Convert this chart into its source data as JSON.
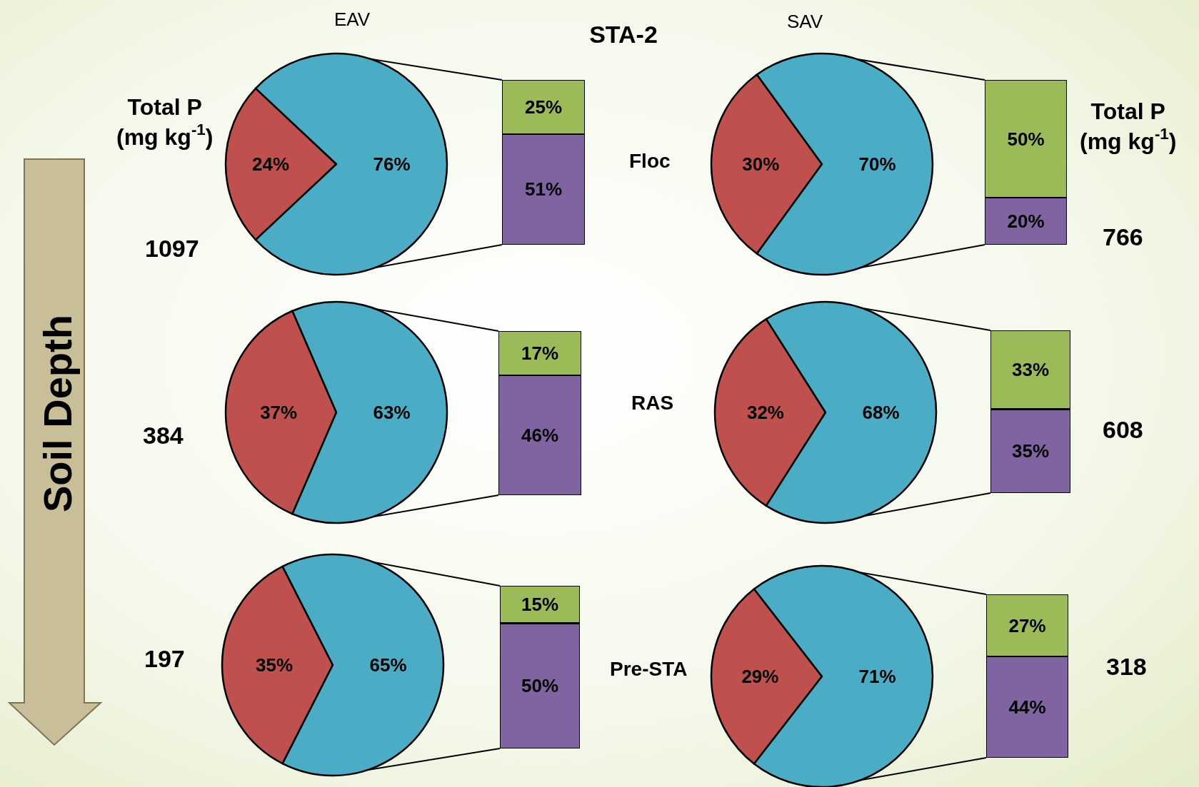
{
  "chart_data": [
    {
      "type": "other",
      "title": "STA-2",
      "annotations": [
        "EAV",
        "SAV",
        "Total P\n(mg kg$^{-1}$)",
        "Total P\n(mg kg$^{-1}$)",
        "Floc",
        "RAS",
        "Pre-STA",
        "1097",
        "766",
        "384",
        "608",
        "197",
        "318",
        "Soil Depth"
      ]
    },
    {
      "type": "pie",
      "categories": [
        null,
        null
      ],
      "values": [
        24,
        76
      ],
      "colors": [
        "#c0504d",
        "#4bacc6"
      ],
      "value_labels": [
        "24%",
        "76%"
      ]
    },
    {
      "type": "bar",
      "stacked": true,
      "categories": [
        null
      ],
      "series": [
        {
          "color": "#8064a2",
          "values": [
            51
          ],
          "value_labels": [
            "51%"
          ]
        },
        {
          "color": "#9bbb59",
          "values": [
            25
          ],
          "value_labels": [
            "25%"
          ]
        }
      ]
    },
    {
      "type": "pie",
      "categories": [
        null,
        null
      ],
      "values": [
        30,
        70
      ],
      "colors": [
        "#c0504d",
        "#4bacc6"
      ],
      "value_labels": [
        "30%",
        "70%"
      ]
    },
    {
      "type": "bar",
      "stacked": true,
      "categories": [
        null
      ],
      "series": [
        {
          "color": "#8064a2",
          "values": [
            20
          ],
          "value_labels": [
            "20%"
          ]
        },
        {
          "color": "#9bbb59",
          "values": [
            50
          ],
          "value_labels": [
            "50%"
          ]
        }
      ]
    },
    {
      "type": "pie",
      "categories": [
        null,
        null
      ],
      "values": [
        37,
        63
      ],
      "colors": [
        "#c0504d",
        "#4bacc6"
      ],
      "value_labels": [
        "37%",
        "63%"
      ]
    },
    {
      "type": "bar",
      "stacked": true,
      "categories": [
        null
      ],
      "series": [
        {
          "color": "#8064a2",
          "values": [
            46
          ],
          "value_labels": [
            "46%"
          ]
        },
        {
          "color": "#9bbb59",
          "values": [
            17
          ],
          "value_labels": [
            "17%"
          ]
        }
      ]
    },
    {
      "type": "pie",
      "categories": [
        null,
        null
      ],
      "values": [
        32,
        68
      ],
      "colors": [
        "#c0504d",
        "#4bacc6"
      ],
      "value_labels": [
        "32%",
        "68%"
      ]
    },
    {
      "type": "bar",
      "stacked": true,
      "categories": [
        null
      ],
      "series": [
        {
          "color": "#8064a2",
          "values": [
            35
          ],
          "value_labels": [
            "35%"
          ]
        },
        {
          "color": "#9bbb59",
          "values": [
            33
          ],
          "value_labels": [
            "33%"
          ]
        }
      ]
    },
    {
      "type": "pie",
      "categories": [
        null,
        null
      ],
      "values": [
        35,
        65
      ],
      "colors": [
        "#c0504d",
        "#4bacc6"
      ],
      "value_labels": [
        "35%",
        "65%"
      ]
    },
    {
      "type": "bar",
      "stacked": true,
      "categories": [
        null
      ],
      "series": [
        {
          "color": "#8064a2",
          "values": [
            50
          ],
          "value_labels": [
            "50%"
          ]
        },
        {
          "color": "#9bbb59",
          "values": [
            15
          ],
          "value_labels": [
            "15%"
          ]
        }
      ]
    },
    {
      "type": "pie",
      "categories": [
        null,
        null
      ],
      "values": [
        29,
        71
      ],
      "colors": [
        "#c0504d",
        "#4bacc6"
      ],
      "value_labels": [
        "29%",
        "71%"
      ]
    },
    {
      "type": "bar",
      "stacked": true,
      "categories": [
        null
      ],
      "series": [
        {
          "color": "#8064a2",
          "values": [
            44
          ],
          "value_labels": [
            "44%"
          ]
        },
        {
          "color": "#9bbb59",
          "values": [
            27
          ],
          "value_labels": [
            "27%"
          ]
        }
      ]
    }
  ]
}
